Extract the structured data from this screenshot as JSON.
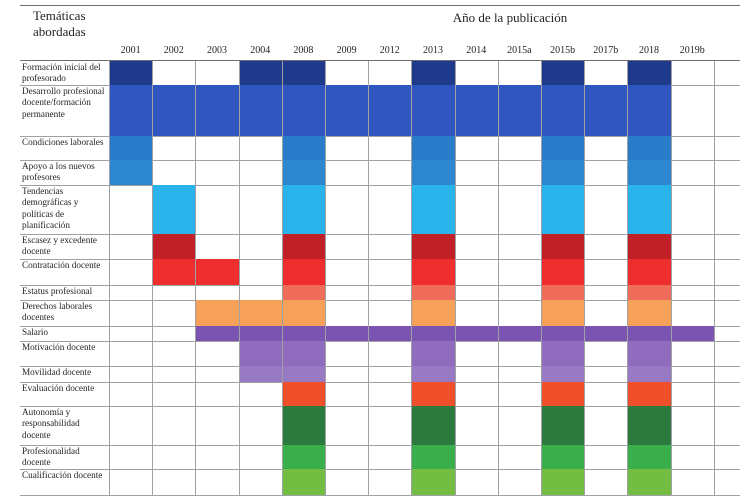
{
  "header": {
    "topics_title": "Temáticas abordadas",
    "years_title": "Año de la publicación"
  },
  "years": [
    "2001",
    "2002",
    "2003",
    "2004",
    "2008",
    "2009",
    "2012",
    "2013",
    "2014",
    "2015a",
    "2015b",
    "2017b",
    "2018",
    "2019b"
  ],
  "rows": [
    {
      "label": "Formación inicial del profesorado",
      "color": "#1f3a8a",
      "spans": [
        [
          0,
          0
        ],
        [
          3,
          4
        ],
        [
          7,
          7
        ],
        [
          10,
          10
        ],
        [
          12,
          12
        ]
      ]
    },
    {
      "label": "Desarrollo profesional docente/formación permanente",
      "color": "#2f56c0",
      "spans": [
        [
          0,
          12
        ]
      ]
    },
    {
      "label": "Condiciones laborales",
      "color": "#2b7bcb",
      "spans": [
        [
          0,
          0
        ],
        [
          4,
          4
        ],
        [
          7,
          7
        ],
        [
          10,
          10
        ],
        [
          12,
          12
        ]
      ]
    },
    {
      "label": "Apoyo a los nuevos profesores",
      "color": "#2c86d0",
      "spans": [
        [
          0,
          0
        ],
        [
          4,
          4
        ],
        [
          7,
          7
        ],
        [
          10,
          10
        ],
        [
          12,
          12
        ]
      ]
    },
    {
      "label": "Tendencias demográficas y políticas de planificación",
      "color": "#29b3ea",
      "spans": [
        [
          1,
          1
        ],
        [
          4,
          4
        ],
        [
          7,
          7
        ],
        [
          10,
          10
        ],
        [
          12,
          12
        ]
      ]
    },
    {
      "label": "Escasez y excedente docente",
      "color": "#c12026",
      "spans": [
        [
          1,
          1
        ],
        [
          4,
          4
        ],
        [
          7,
          7
        ],
        [
          10,
          10
        ],
        [
          12,
          12
        ]
      ]
    },
    {
      "label": "Contratación docente",
      "color": "#ee2d2f",
      "spans": [
        [
          1,
          2
        ],
        [
          4,
          4
        ],
        [
          7,
          7
        ],
        [
          10,
          10
        ],
        [
          12,
          12
        ]
      ]
    },
    {
      "label": "Estatus profesional",
      "color": "#ef6b5a",
      "spans": [
        [
          4,
          4
        ],
        [
          7,
          7
        ],
        [
          10,
          10
        ],
        [
          12,
          12
        ]
      ]
    },
    {
      "label": "Derechos laborales docentes",
      "color": "#f6a05a",
      "spans": [
        [
          2,
          4
        ],
        [
          7,
          7
        ],
        [
          10,
          10
        ],
        [
          12,
          12
        ]
      ]
    },
    {
      "label": "Salario",
      "color": "#7b53b0",
      "spans": [
        [
          2,
          13
        ]
      ]
    },
    {
      "label": "Motivación docente",
      "color": "#8f6cbd",
      "spans": [
        [
          3,
          4
        ],
        [
          7,
          7
        ],
        [
          10,
          10
        ],
        [
          12,
          12
        ]
      ]
    },
    {
      "label": "Movilidad docente",
      "color": "#9879c3",
      "spans": [
        [
          3,
          4
        ],
        [
          7,
          7
        ],
        [
          10,
          10
        ],
        [
          12,
          12
        ]
      ]
    },
    {
      "label": "Evaluación docente",
      "color": "#ef4f2a",
      "spans": [
        [
          4,
          4
        ],
        [
          7,
          7
        ],
        [
          10,
          10
        ],
        [
          12,
          12
        ]
      ]
    },
    {
      "label": "Autonomía y responsabilidad docente",
      "color": "#2c7a3e",
      "spans": [
        [
          4,
          4
        ],
        [
          7,
          7
        ],
        [
          10,
          10
        ],
        [
          12,
          12
        ]
      ]
    },
    {
      "label": "Profesionalidad docente",
      "color": "#3aae4a",
      "spans": [
        [
          4,
          4
        ],
        [
          7,
          7
        ],
        [
          10,
          10
        ],
        [
          12,
          12
        ]
      ]
    },
    {
      "label": "Cualificación docente",
      "color": "#74bd43",
      "spans": [
        [
          4,
          4
        ],
        [
          7,
          7
        ],
        [
          10,
          10
        ],
        [
          12,
          12
        ]
      ]
    }
  ]
}
